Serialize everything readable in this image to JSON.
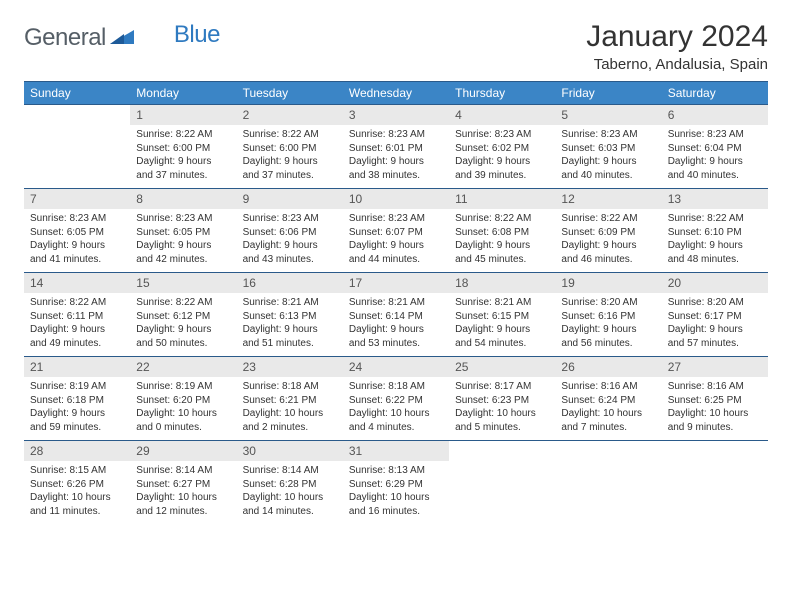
{
  "logo": {
    "text_gray": "General",
    "text_blue": "Blue"
  },
  "title": "January 2024",
  "location": "Taberno, Andalusia, Spain",
  "colors": {
    "header_bg": "#3b85c6",
    "header_border": "#2a5a8a",
    "daynum_bg": "#e9e9e9",
    "text_dark": "#333333",
    "text_gray": "#555e66",
    "logo_blue": "#2f7ac0",
    "page_bg": "#ffffff"
  },
  "typography": {
    "title_fontsize": 30,
    "location_fontsize": 15,
    "dayhead_fontsize": 12,
    "daynum_fontsize": 12,
    "body_fontsize": 10
  },
  "day_headers": [
    "Sunday",
    "Monday",
    "Tuesday",
    "Wednesday",
    "Thursday",
    "Friday",
    "Saturday"
  ],
  "weeks": [
    [
      {
        "n": "",
        "sr": "",
        "ss": "",
        "dl1": "",
        "dl2": ""
      },
      {
        "n": "1",
        "sr": "Sunrise: 8:22 AM",
        "ss": "Sunset: 6:00 PM",
        "dl1": "Daylight: 9 hours",
        "dl2": "and 37 minutes."
      },
      {
        "n": "2",
        "sr": "Sunrise: 8:22 AM",
        "ss": "Sunset: 6:00 PM",
        "dl1": "Daylight: 9 hours",
        "dl2": "and 37 minutes."
      },
      {
        "n": "3",
        "sr": "Sunrise: 8:23 AM",
        "ss": "Sunset: 6:01 PM",
        "dl1": "Daylight: 9 hours",
        "dl2": "and 38 minutes."
      },
      {
        "n": "4",
        "sr": "Sunrise: 8:23 AM",
        "ss": "Sunset: 6:02 PM",
        "dl1": "Daylight: 9 hours",
        "dl2": "and 39 minutes."
      },
      {
        "n": "5",
        "sr": "Sunrise: 8:23 AM",
        "ss": "Sunset: 6:03 PM",
        "dl1": "Daylight: 9 hours",
        "dl2": "and 40 minutes."
      },
      {
        "n": "6",
        "sr": "Sunrise: 8:23 AM",
        "ss": "Sunset: 6:04 PM",
        "dl1": "Daylight: 9 hours",
        "dl2": "and 40 minutes."
      }
    ],
    [
      {
        "n": "7",
        "sr": "Sunrise: 8:23 AM",
        "ss": "Sunset: 6:05 PM",
        "dl1": "Daylight: 9 hours",
        "dl2": "and 41 minutes."
      },
      {
        "n": "8",
        "sr": "Sunrise: 8:23 AM",
        "ss": "Sunset: 6:05 PM",
        "dl1": "Daylight: 9 hours",
        "dl2": "and 42 minutes."
      },
      {
        "n": "9",
        "sr": "Sunrise: 8:23 AM",
        "ss": "Sunset: 6:06 PM",
        "dl1": "Daylight: 9 hours",
        "dl2": "and 43 minutes."
      },
      {
        "n": "10",
        "sr": "Sunrise: 8:23 AM",
        "ss": "Sunset: 6:07 PM",
        "dl1": "Daylight: 9 hours",
        "dl2": "and 44 minutes."
      },
      {
        "n": "11",
        "sr": "Sunrise: 8:22 AM",
        "ss": "Sunset: 6:08 PM",
        "dl1": "Daylight: 9 hours",
        "dl2": "and 45 minutes."
      },
      {
        "n": "12",
        "sr": "Sunrise: 8:22 AM",
        "ss": "Sunset: 6:09 PM",
        "dl1": "Daylight: 9 hours",
        "dl2": "and 46 minutes."
      },
      {
        "n": "13",
        "sr": "Sunrise: 8:22 AM",
        "ss": "Sunset: 6:10 PM",
        "dl1": "Daylight: 9 hours",
        "dl2": "and 48 minutes."
      }
    ],
    [
      {
        "n": "14",
        "sr": "Sunrise: 8:22 AM",
        "ss": "Sunset: 6:11 PM",
        "dl1": "Daylight: 9 hours",
        "dl2": "and 49 minutes."
      },
      {
        "n": "15",
        "sr": "Sunrise: 8:22 AM",
        "ss": "Sunset: 6:12 PM",
        "dl1": "Daylight: 9 hours",
        "dl2": "and 50 minutes."
      },
      {
        "n": "16",
        "sr": "Sunrise: 8:21 AM",
        "ss": "Sunset: 6:13 PM",
        "dl1": "Daylight: 9 hours",
        "dl2": "and 51 minutes."
      },
      {
        "n": "17",
        "sr": "Sunrise: 8:21 AM",
        "ss": "Sunset: 6:14 PM",
        "dl1": "Daylight: 9 hours",
        "dl2": "and 53 minutes."
      },
      {
        "n": "18",
        "sr": "Sunrise: 8:21 AM",
        "ss": "Sunset: 6:15 PM",
        "dl1": "Daylight: 9 hours",
        "dl2": "and 54 minutes."
      },
      {
        "n": "19",
        "sr": "Sunrise: 8:20 AM",
        "ss": "Sunset: 6:16 PM",
        "dl1": "Daylight: 9 hours",
        "dl2": "and 56 minutes."
      },
      {
        "n": "20",
        "sr": "Sunrise: 8:20 AM",
        "ss": "Sunset: 6:17 PM",
        "dl1": "Daylight: 9 hours",
        "dl2": "and 57 minutes."
      }
    ],
    [
      {
        "n": "21",
        "sr": "Sunrise: 8:19 AM",
        "ss": "Sunset: 6:18 PM",
        "dl1": "Daylight: 9 hours",
        "dl2": "and 59 minutes."
      },
      {
        "n": "22",
        "sr": "Sunrise: 8:19 AM",
        "ss": "Sunset: 6:20 PM",
        "dl1": "Daylight: 10 hours",
        "dl2": "and 0 minutes."
      },
      {
        "n": "23",
        "sr": "Sunrise: 8:18 AM",
        "ss": "Sunset: 6:21 PM",
        "dl1": "Daylight: 10 hours",
        "dl2": "and 2 minutes."
      },
      {
        "n": "24",
        "sr": "Sunrise: 8:18 AM",
        "ss": "Sunset: 6:22 PM",
        "dl1": "Daylight: 10 hours",
        "dl2": "and 4 minutes."
      },
      {
        "n": "25",
        "sr": "Sunrise: 8:17 AM",
        "ss": "Sunset: 6:23 PM",
        "dl1": "Daylight: 10 hours",
        "dl2": "and 5 minutes."
      },
      {
        "n": "26",
        "sr": "Sunrise: 8:16 AM",
        "ss": "Sunset: 6:24 PM",
        "dl1": "Daylight: 10 hours",
        "dl2": "and 7 minutes."
      },
      {
        "n": "27",
        "sr": "Sunrise: 8:16 AM",
        "ss": "Sunset: 6:25 PM",
        "dl1": "Daylight: 10 hours",
        "dl2": "and 9 minutes."
      }
    ],
    [
      {
        "n": "28",
        "sr": "Sunrise: 8:15 AM",
        "ss": "Sunset: 6:26 PM",
        "dl1": "Daylight: 10 hours",
        "dl2": "and 11 minutes."
      },
      {
        "n": "29",
        "sr": "Sunrise: 8:14 AM",
        "ss": "Sunset: 6:27 PM",
        "dl1": "Daylight: 10 hours",
        "dl2": "and 12 minutes."
      },
      {
        "n": "30",
        "sr": "Sunrise: 8:14 AM",
        "ss": "Sunset: 6:28 PM",
        "dl1": "Daylight: 10 hours",
        "dl2": "and 14 minutes."
      },
      {
        "n": "31",
        "sr": "Sunrise: 8:13 AM",
        "ss": "Sunset: 6:29 PM",
        "dl1": "Daylight: 10 hours",
        "dl2": "and 16 minutes."
      },
      {
        "n": "",
        "sr": "",
        "ss": "",
        "dl1": "",
        "dl2": ""
      },
      {
        "n": "",
        "sr": "",
        "ss": "",
        "dl1": "",
        "dl2": ""
      },
      {
        "n": "",
        "sr": "",
        "ss": "",
        "dl1": "",
        "dl2": ""
      }
    ]
  ]
}
